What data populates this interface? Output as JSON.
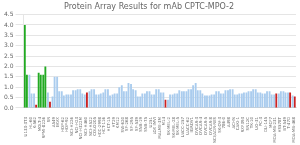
{
  "chart_data": {
    "type": "bar",
    "title": "Protein Array Results for mAb CPTC-MPO-2",
    "categories": [
      "U133-3T3",
      "HL-60",
      "K-562",
      "MOLT-4",
      "RPMI-8226",
      "SR",
      "A549",
      "EKVX",
      "HOP-62",
      "HOP-92",
      "NCI-H226",
      "NCI-H23",
      "NCI-H322M",
      "NCI-H460",
      "NCI-H522",
      "COLO205",
      "HCC-2998",
      "HCT-116",
      "HCT-15",
      "HT29",
      "KM12",
      "SW-620",
      "SF-268",
      "SF-295",
      "SF-539",
      "SNB-19",
      "SNB-75",
      "U251",
      "LOX IMVI",
      "MALME-3M",
      "M14",
      "SK-MEL-2",
      "SK-MEL-28",
      "SK-MEL-5",
      "UACC-257",
      "UACC-62",
      "IGROV1",
      "OVCAR-3",
      "OVCAR-4",
      "OVCAR-5",
      "OVCAR-8",
      "NCI/ADR-RES",
      "SK-OV-3",
      "786-0",
      "A498",
      "ACHN",
      "CAKI-1",
      "RXF393",
      "SN12C",
      "TK-10",
      "UO-31",
      "PC-3",
      "DU-145",
      "MCF7",
      "MDA-MB-231",
      "HS578T",
      "BT-549",
      "T-47D",
      "MDA-MB-468"
    ],
    "series": [
      {
        "values": [
          4.0,
          1.6,
          0.7,
          1.7,
          1.6,
          0.75,
          0.55,
          1.5,
          0.8,
          0.65,
          0.65,
          0.85,
          0.9,
          0.65,
          0.8,
          0.9,
          0.65,
          0.75,
          0.9,
          0.65,
          0.7,
          1.1,
          0.8,
          1.15,
          0.85,
          0.55,
          0.7,
          0.8,
          0.65,
          0.9,
          0.75,
          0.4,
          0.65,
          0.7,
          0.8,
          0.8,
          0.9,
          1.2,
          0.85,
          0.6,
          0.6,
          0.65,
          0.8,
          0.7,
          0.85,
          0.9,
          0.65,
          0.7,
          0.75,
          0.8,
          0.9,
          0.75,
          0.7,
          0.8,
          0.65,
          0.7,
          0.8,
          0.75,
          0.6
        ],
        "colors": [
          "#22aa22",
          "#aaccee",
          "#aaccee",
          "#22aa22",
          "#22aa22",
          "#aaccee",
          "#aaccee",
          "#aaccee",
          "#aaccee",
          "#aaccee",
          "#aaccee",
          "#aaccee",
          "#aaccee",
          "#aaccee",
          "#aaccee",
          "#aaccee",
          "#aaccee",
          "#aaccee",
          "#aaccee",
          "#aaccee",
          "#aaccee",
          "#aaccee",
          "#aaccee",
          "#aaccee",
          "#aaccee",
          "#aaccee",
          "#aaccee",
          "#aaccee",
          "#aaccee",
          "#aaccee",
          "#aaccee",
          "#aaccee",
          "#aaccee",
          "#aaccee",
          "#aaccee",
          "#aaccee",
          "#aaccee",
          "#aaccee",
          "#aaccee",
          "#aaccee",
          "#aaccee",
          "#aaccee",
          "#aaccee",
          "#aaccee",
          "#aaccee",
          "#aaccee",
          "#aaccee",
          "#aaccee",
          "#aaccee",
          "#aaccee",
          "#aaccee",
          "#aaccee",
          "#aaccee",
          "#aaccee",
          "#aaccee",
          "#aaccee",
          "#aaccee",
          "#aaccee",
          "#aaccee"
        ]
      },
      {
        "values": [
          1.6,
          0.7,
          0.15,
          1.6,
          2.0,
          0.3,
          1.5,
          0.8,
          0.6,
          0.65,
          0.85,
          0.9,
          0.7,
          0.75,
          0.9,
          0.65,
          0.7,
          0.9,
          0.6,
          0.7,
          1.0,
          0.8,
          1.2,
          0.9,
          0.55,
          0.7,
          0.8,
          0.65,
          0.9,
          0.75,
          0.4,
          0.65,
          0.7,
          0.85,
          0.8,
          0.9,
          1.1,
          0.85,
          0.7,
          0.6,
          0.65,
          0.8,
          0.7,
          0.85,
          0.9,
          0.65,
          0.7,
          0.75,
          0.8,
          0.9,
          0.75,
          0.7,
          0.8,
          0.65,
          0.7,
          0.8,
          0.75,
          0.75,
          0.55
        ],
        "colors": [
          "#22aa22",
          "#aaccee",
          "#cc2222",
          "#22aa22",
          "#22aa22",
          "#cc2222",
          "#aaccee",
          "#aaccee",
          "#aaccee",
          "#aaccee",
          "#aaccee",
          "#aaccee",
          "#aaccee",
          "#cc2222",
          "#aaccee",
          "#aaccee",
          "#aaccee",
          "#aaccee",
          "#aaccee",
          "#aaccee",
          "#aaccee",
          "#aaccee",
          "#aaccee",
          "#aaccee",
          "#aaccee",
          "#aaccee",
          "#aaccee",
          "#aaccee",
          "#aaccee",
          "#aaccee",
          "#cc2222",
          "#aaccee",
          "#aaccee",
          "#aaccee",
          "#aaccee",
          "#aaccee",
          "#aaccee",
          "#aaccee",
          "#aaccee",
          "#aaccee",
          "#aaccee",
          "#aaccee",
          "#aaccee",
          "#aaccee",
          "#aaccee",
          "#aaccee",
          "#aaccee",
          "#aaccee",
          "#aaccee",
          "#aaccee",
          "#aaccee",
          "#aaccee",
          "#aaccee",
          "#aaccee",
          "#cc2222",
          "#aaccee",
          "#aaccee",
          "#cc2222",
          "#cc2222"
        ]
      }
    ],
    "ylim": [
      0,
      4.5
    ],
    "yticks": [
      {
        "value": 0,
        "label": "0.0"
      },
      0.5,
      {
        "value": 1,
        "label": "1.0"
      },
      1.5,
      {
        "value": 2,
        "label": "2.0"
      },
      2.5,
      {
        "value": 3,
        "label": "3.0"
      },
      3.5,
      {
        "value": 4,
        "label": "4.0"
      },
      4.5
    ],
    "grid": true
  }
}
